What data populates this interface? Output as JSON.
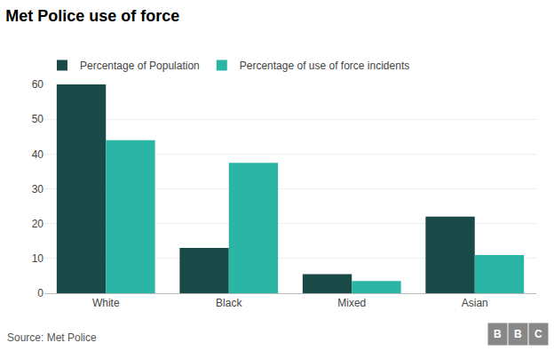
{
  "chart_data": {
    "type": "bar",
    "title": "Met Police use of force",
    "categories": [
      "White",
      "Black",
      "Mixed",
      "Asian"
    ],
    "series": [
      {
        "name": "Percentage of Population",
        "color": "#1a4a47",
        "values": [
          60,
          13,
          5.5,
          22
        ]
      },
      {
        "name": "Percentage of use of force incidents",
        "color": "#2ab5a5",
        "values": [
          44,
          37.5,
          3.5,
          11
        ]
      }
    ],
    "ylim": [
      0,
      60
    ],
    "yticks": [
      0,
      10,
      20,
      30,
      40,
      50,
      60
    ],
    "grid": true,
    "legend": "top",
    "annotations": [
      "Source: Met Police",
      "B",
      "B",
      "C"
    ]
  }
}
